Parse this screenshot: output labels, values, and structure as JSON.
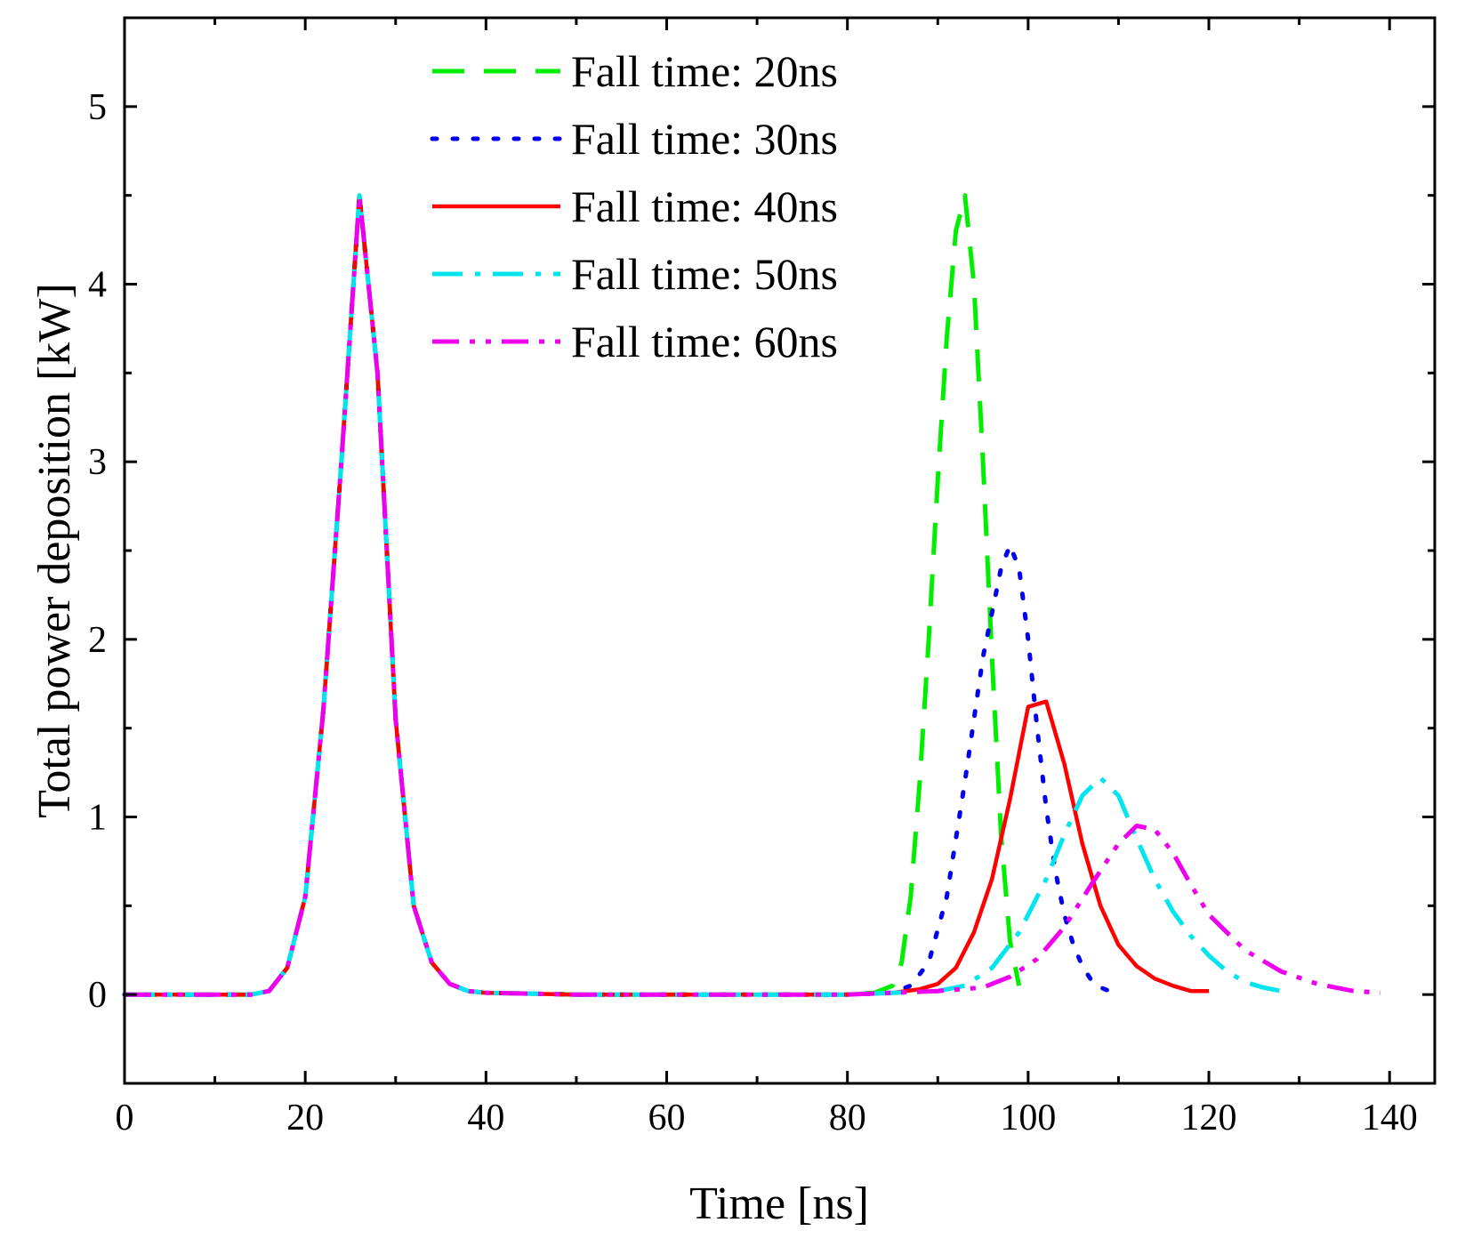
{
  "chart_data": {
    "type": "line",
    "title": "",
    "xlabel": "Time [ns]",
    "ylabel": "Total power deposition [kW]",
    "xlim": [
      0,
      145
    ],
    "ylim": [
      -0.5,
      5.5
    ],
    "xticks": [
      0,
      20,
      40,
      60,
      80,
      100,
      120,
      140
    ],
    "yticks": [
      0,
      1,
      2,
      3,
      4,
      5
    ],
    "xtick_labels": [
      "0",
      "20",
      "40",
      "60",
      "80",
      "100",
      "120",
      "140"
    ],
    "ytick_labels": [
      "0",
      "1",
      "2",
      "3",
      "4",
      "5"
    ],
    "grid": false,
    "legend_position": "top-center",
    "series": [
      {
        "name": "Fall time: 20ns",
        "color": "#00ee00",
        "style": "dashed",
        "x": [
          0,
          14,
          16,
          18,
          20,
          22,
          24,
          26,
          28,
          30,
          32,
          34,
          36,
          38,
          40,
          50,
          60,
          70,
          80,
          83,
          85,
          86,
          87,
          88,
          89,
          90,
          91,
          92,
          93,
          94,
          95,
          96,
          97,
          98,
          99
        ],
        "y": [
          0,
          0,
          0.02,
          0.15,
          0.55,
          1.6,
          3.0,
          4.5,
          3.5,
          1.55,
          0.5,
          0.18,
          0.06,
          0.02,
          0.01,
          0,
          0,
          0,
          0,
          0.01,
          0.05,
          0.18,
          0.55,
          1.2,
          2.0,
          2.9,
          3.7,
          4.3,
          4.5,
          4.0,
          3.0,
          1.9,
          0.9,
          0.3,
          0.05
        ]
      },
      {
        "name": "Fall time: 30ns",
        "color": "#0000ee",
        "style": "dotted",
        "x": [
          0,
          14,
          16,
          18,
          20,
          22,
          24,
          26,
          28,
          30,
          32,
          34,
          36,
          38,
          40,
          50,
          60,
          70,
          80,
          85,
          87,
          89,
          91,
          93,
          95,
          97,
          98,
          99,
          100,
          101,
          102,
          103,
          104,
          105,
          106,
          107,
          108,
          109
        ],
        "y": [
          0,
          0,
          0.02,
          0.15,
          0.55,
          1.6,
          3.0,
          4.5,
          3.5,
          1.55,
          0.5,
          0.18,
          0.06,
          0.02,
          0.01,
          0,
          0,
          0,
          0,
          0.01,
          0.05,
          0.18,
          0.55,
          1.2,
          1.9,
          2.4,
          2.53,
          2.4,
          2.0,
          1.5,
          1.05,
          0.7,
          0.45,
          0.28,
          0.16,
          0.08,
          0.04,
          0.02
        ]
      },
      {
        "name": "Fall time: 40ns",
        "color": "#ff0000",
        "style": "solid",
        "x": [
          0,
          14,
          16,
          18,
          20,
          22,
          24,
          26,
          28,
          30,
          32,
          34,
          36,
          38,
          40,
          50,
          60,
          70,
          80,
          85,
          88,
          90,
          92,
          94,
          96,
          98,
          100,
          102,
          104,
          106,
          108,
          110,
          112,
          114,
          116,
          118,
          120
        ],
        "y": [
          0,
          0,
          0.02,
          0.15,
          0.55,
          1.6,
          3.0,
          4.5,
          3.5,
          1.55,
          0.5,
          0.18,
          0.06,
          0.02,
          0.01,
          0,
          0,
          0,
          0,
          0.01,
          0.03,
          0.06,
          0.15,
          0.35,
          0.65,
          1.1,
          1.62,
          1.65,
          1.3,
          0.85,
          0.5,
          0.28,
          0.16,
          0.09,
          0.05,
          0.02,
          0.02
        ]
      },
      {
        "name": "Fall time: 50ns",
        "color": "#00e5ee",
        "style": "dashdot",
        "x": [
          0,
          14,
          16,
          18,
          20,
          22,
          24,
          26,
          28,
          30,
          32,
          34,
          36,
          38,
          40,
          50,
          60,
          70,
          80,
          85,
          90,
          93,
          96,
          99,
          102,
          104,
          106,
          108,
          110,
          112,
          114,
          116,
          118,
          120,
          122,
          124,
          126,
          128
        ],
        "y": [
          0,
          0,
          0.02,
          0.15,
          0.55,
          1.6,
          3.0,
          4.5,
          3.5,
          1.55,
          0.5,
          0.18,
          0.06,
          0.02,
          0.01,
          0,
          0,
          0,
          0,
          0.01,
          0.02,
          0.05,
          0.15,
          0.35,
          0.65,
          0.9,
          1.12,
          1.22,
          1.12,
          0.88,
          0.65,
          0.47,
          0.33,
          0.22,
          0.13,
          0.07,
          0.04,
          0.02
        ]
      },
      {
        "name": "Fall time: 60ns",
        "color": "#ee00ee",
        "style": "dashdotdot",
        "x": [
          0,
          14,
          16,
          18,
          20,
          22,
          24,
          26,
          28,
          30,
          32,
          34,
          36,
          38,
          40,
          50,
          60,
          70,
          80,
          85,
          90,
          95,
          98,
          101,
          104,
          107,
          110,
          112,
          114,
          116,
          118,
          120,
          124,
          128,
          132,
          136,
          139
        ],
        "y": [
          0,
          0,
          0.02,
          0.15,
          0.55,
          1.6,
          3.0,
          4.5,
          3.5,
          1.55,
          0.5,
          0.18,
          0.06,
          0.02,
          0.01,
          0,
          0,
          0,
          0,
          0.01,
          0.02,
          0.04,
          0.1,
          0.2,
          0.38,
          0.62,
          0.85,
          0.95,
          0.93,
          0.8,
          0.62,
          0.45,
          0.25,
          0.13,
          0.06,
          0.02,
          0.01
        ]
      }
    ]
  }
}
